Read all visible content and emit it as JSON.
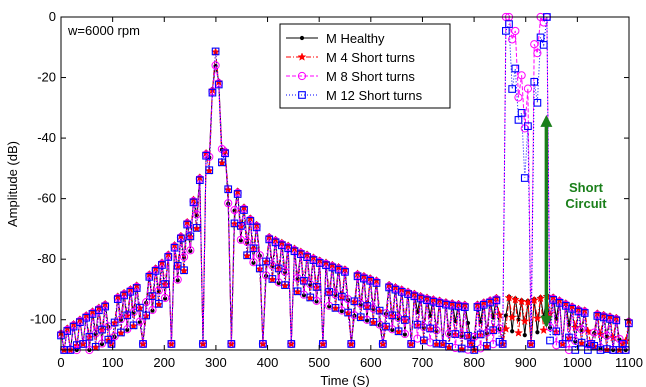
{
  "chart_data": {
    "type": "line",
    "xlabel": "Time (S)",
    "ylabel": "Amplitude (dB)",
    "xlim": [
      0,
      1100
    ],
    "ylim": [
      -110,
      0
    ],
    "xticks": [
      0,
      100,
      200,
      300,
      400,
      500,
      600,
      700,
      800,
      900,
      1000,
      1100
    ],
    "yticks": [
      0,
      -20,
      -40,
      -60,
      -80,
      -100
    ],
    "grid": false,
    "legend_position": "top-center",
    "annotations": {
      "speed": "w=6000 rpm",
      "short_circuit_line1": "Short",
      "short_circuit_line2": "Circuit",
      "arrow_x": 940,
      "arrow_y_from": -102,
      "arrow_y_to": -33,
      "arrow_color": "#1a7f1a"
    },
    "sample_spacing": 6.11,
    "envelope_peaks": [
      {
        "x": 0,
        "y": -104
      },
      {
        "x": 50,
        "y": -98
      },
      {
        "x": 100,
        "y": -93
      },
      {
        "x": 150,
        "y": -88
      },
      {
        "x": 200,
        "y": -80
      },
      {
        "x": 240,
        "y": -70
      },
      {
        "x": 270,
        "y": -52
      },
      {
        "x": 285,
        "y": -42
      },
      {
        "x": 295,
        "y": -20
      },
      {
        "x": 300,
        "y": 0
      },
      {
        "x": 305,
        "y": -20
      },
      {
        "x": 315,
        "y": -42
      },
      {
        "x": 330,
        "y": -52
      },
      {
        "x": 360,
        "y": -65
      },
      {
        "x": 400,
        "y": -72
      },
      {
        "x": 450,
        "y": -76
      },
      {
        "x": 500,
        "y": -80
      },
      {
        "x": 550,
        "y": -83
      },
      {
        "x": 600,
        "y": -86
      },
      {
        "x": 650,
        "y": -89
      },
      {
        "x": 700,
        "y": -92
      },
      {
        "x": 750,
        "y": -94
      },
      {
        "x": 800,
        "y": -95
      },
      {
        "x": 850,
        "y": -92
      },
      {
        "x": 880,
        "y": -85
      },
      {
        "x": 895,
        "y": -60
      },
      {
        "x": 900,
        "y": -40
      },
      {
        "x": 905,
        "y": -60
      },
      {
        "x": 920,
        "y": -85
      },
      {
        "x": 950,
        "y": -92
      },
      {
        "x": 1000,
        "y": -96
      },
      {
        "x": 1050,
        "y": -98
      },
      {
        "x": 1100,
        "y": -100
      }
    ],
    "series": [
      {
        "name": "M Healthy",
        "color": "#000000",
        "marker": "dot",
        "dash": "solid",
        "peak_at_900": -100
      },
      {
        "name": "M 4 Short turns",
        "color": "#ff0000",
        "marker": "star",
        "dash": "dashdot",
        "peak_at_900": -97
      },
      {
        "name": "M 8 Short turns",
        "color": "#ff00ff",
        "marker": "circle",
        "dash": "dashed",
        "peak_at_900": -28
      },
      {
        "name": "M 12 Short turns",
        "color": "#0000ff",
        "marker": "square",
        "dash": "dotted",
        "peak_at_900": -40
      }
    ]
  }
}
